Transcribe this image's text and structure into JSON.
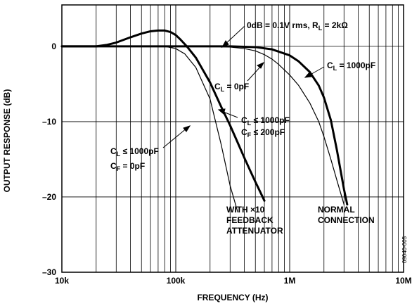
{
  "chart_data": {
    "type": "line",
    "xlabel": "FREQUENCY (Hz)",
    "ylabel": "OUTPUT RESPONSE (dB)",
    "xscale": "log",
    "xlim": [
      10000,
      10000000
    ],
    "ylim": [
      -30,
      5.5
    ],
    "x_ticks": [
      10000,
      100000,
      1000000,
      10000000
    ],
    "x_tick_labels": [
      "10k",
      "100k",
      "1M",
      "10M"
    ],
    "y_ticks": [
      0,
      -10,
      -20,
      -30
    ],
    "y_tick_labels": [
      "0",
      "–10",
      "–20",
      "–30"
    ],
    "grid": true,
    "figure_id": "09040-005",
    "series": [
      {
        "weight": "bold",
        "x": [
          10000,
          20000,
          25000,
          30000,
          40000,
          50000,
          60000,
          70000,
          80000,
          90000,
          100000,
          110000,
          125000,
          150000,
          200000,
          250000,
          300000,
          350000,
          400000,
          450000,
          500000,
          550000,
          600000
        ],
        "y": [
          0,
          0,
          0.2,
          0.5,
          1.2,
          1.7,
          2.0,
          2.1,
          2.1,
          1.9,
          1.5,
          0.9,
          0,
          -1.5,
          -4.8,
          -8,
          -10.5,
          -12.8,
          -14.8,
          -16.5,
          -18,
          -19.3,
          -20.5
        ]
      },
      {
        "weight": "thin",
        "x": [
          10000,
          80000,
          100000,
          120000,
          150000,
          200000,
          250000,
          300000,
          350000
        ],
        "y": [
          0,
          0,
          -0.3,
          -1.0,
          -2.8,
          -7,
          -13,
          -18.5,
          -22
        ]
      },
      {
        "weight": "thin",
        "x": [
          10000,
          200000,
          300000,
          400000,
          500000,
          600000,
          700000,
          800000,
          1000000,
          1200000,
          1500000,
          1800000,
          2000000,
          2300000,
          2600000,
          3000000
        ],
        "y": [
          0,
          0,
          -0.1,
          -0.3,
          -0.6,
          -1.1,
          -1.7,
          -2.4,
          -3.8,
          -5.2,
          -7.5,
          -10,
          -12,
          -15,
          -17.8,
          -21
        ]
      },
      {
        "weight": "bold",
        "x": [
          10000,
          300000,
          500000,
          700000,
          1000000,
          1200000,
          1500000,
          1800000,
          2000000,
          2300000,
          2600000,
          3000000,
          3200000
        ],
        "y": [
          0,
          0,
          -0.1,
          -0.4,
          -1.2,
          -2.0,
          -3.4,
          -5.2,
          -6.8,
          -9.8,
          -13.8,
          -19,
          -21
        ]
      }
    ],
    "annotations": [
      {
        "id": "cond",
        "pre": "0dB = 0.1V rms, R",
        "sub": "L",
        "post": " = 2kΩ"
      },
      {
        "id": "cl1000",
        "pre": "C",
        "sub": "L",
        "post": " = 1000pF"
      },
      {
        "id": "cl0",
        "pre": "C",
        "sub": "L",
        "post": " = 0pF"
      },
      {
        "id": "cl_le_a",
        "pre": "C",
        "sub": "L",
        "post": " ≤ 1000pF"
      },
      {
        "id": "cf_le",
        "pre": "C",
        "sub": "F",
        "post": " ≤ 200pF"
      },
      {
        "id": "cl_le_b",
        "pre": "C",
        "sub": "L",
        "post": " ≤ 1000pF"
      },
      {
        "id": "cf0",
        "pre": "C",
        "sub": "F",
        "post": " = 0pF"
      }
    ],
    "group_labels": {
      "feedback": [
        "WITH ×10",
        "FEEDBACK",
        "ATTENUATOR"
      ],
      "normal": [
        "NORMAL",
        "CONNECTION"
      ]
    }
  }
}
